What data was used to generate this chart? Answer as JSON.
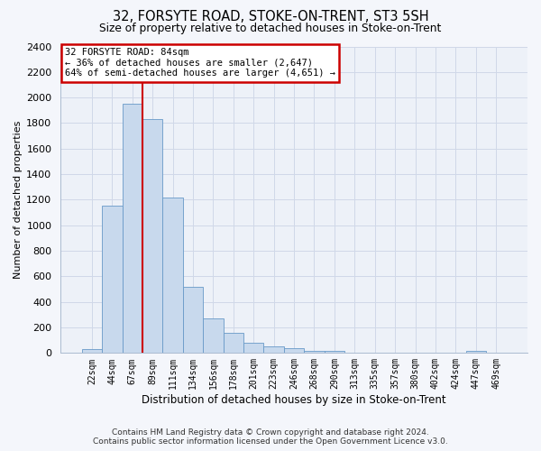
{
  "title": "32, FORSYTE ROAD, STOKE-ON-TRENT, ST3 5SH",
  "subtitle": "Size of property relative to detached houses in Stoke-on-Trent",
  "xlabel": "Distribution of detached houses by size in Stoke-on-Trent",
  "ylabel": "Number of detached properties",
  "bin_labels": [
    "22sqm",
    "44sqm",
    "67sqm",
    "89sqm",
    "111sqm",
    "134sqm",
    "156sqm",
    "178sqm",
    "201sqm",
    "223sqm",
    "246sqm",
    "268sqm",
    "290sqm",
    "313sqm",
    "335sqm",
    "357sqm",
    "380sqm",
    "402sqm",
    "424sqm",
    "447sqm",
    "469sqm"
  ],
  "bar_values": [
    30,
    1150,
    1950,
    1830,
    1220,
    515,
    270,
    155,
    80,
    50,
    35,
    20,
    20,
    5,
    5,
    5,
    5,
    5,
    5,
    15,
    5
  ],
  "bar_color": "#c8d9ed",
  "bar_edge_color": "#6899c8",
  "red_line_color": "#cc0000",
  "property_line_bin_idx": 2.5,
  "ylim_max": 2400,
  "ytick_step": 200,
  "grid_color": "#d0d8e8",
  "bg_color": "#edf1f8",
  "fig_bg_color": "#f4f6fb",
  "annotation_line0": "32 FORSYTE ROAD: 84sqm",
  "annotation_line1": "← 36% of detached houses are smaller (2,647)",
  "annotation_line2": "64% of semi-detached houses are larger (4,651) →",
  "footer1": "Contains HM Land Registry data © Crown copyright and database right 2024.",
  "footer2": "Contains public sector information licensed under the Open Government Licence v3.0."
}
